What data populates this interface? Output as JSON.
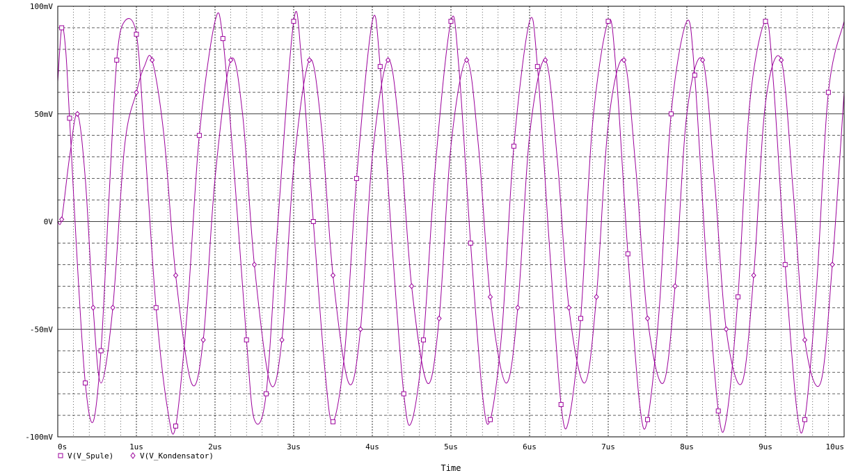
{
  "chart_data": {
    "type": "line",
    "xlabel": "Time",
    "ylabel": "",
    "xlim": [
      0,
      10
    ],
    "ylim": [
      -100,
      100
    ],
    "x_ticks": [
      0,
      1,
      2,
      3,
      4,
      5,
      6,
      7,
      8,
      9,
      10
    ],
    "x_tick_labels": [
      "0s",
      "1us",
      "2us",
      "3us",
      "4us",
      "5us",
      "6us",
      "7us",
      "8us",
      "9us",
      "10us"
    ],
    "y_ticks": [
      -100,
      -50,
      0,
      50,
      100
    ],
    "y_tick_labels": [
      "-100mV",
      "-50mV",
      "0V",
      "50mV",
      "100mV"
    ],
    "x_unit": "us",
    "y_unit": "mV",
    "grid": true,
    "legend_position": "bottom-left",
    "line_color": "#9b009b",
    "series": [
      {
        "name": "V(V_Spule)",
        "marker": "square",
        "x": [
          0,
          0.05,
          0.1,
          0.15,
          0.25,
          0.35,
          0.45,
          0.55,
          0.65,
          0.75,
          0.85,
          1.0,
          1.1,
          1.25,
          1.4,
          1.5,
          1.65,
          1.8,
          2.0,
          2.1,
          2.25,
          2.4,
          2.5,
          2.65,
          2.8,
          3.0,
          3.1,
          3.25,
          3.4,
          3.5,
          3.65,
          3.8,
          4.0,
          4.1,
          4.25,
          4.4,
          4.5,
          4.65,
          4.8,
          5.0,
          5.1,
          5.25,
          5.4,
          5.5,
          5.65,
          5.8,
          6.0,
          6.1,
          6.25,
          6.4,
          6.5,
          6.65,
          6.8,
          7.0,
          7.1,
          7.25,
          7.4,
          7.5,
          7.65,
          7.8,
          8.0,
          8.1,
          8.25,
          8.4,
          8.5,
          8.65,
          8.8,
          9.0,
          9.1,
          9.25,
          9.4,
          9.5,
          9.65,
          9.8,
          10.0
        ],
        "values": [
          65,
          90,
          80,
          48,
          -20,
          -75,
          -93,
          -60,
          10,
          75,
          93,
          87,
          40,
          -40,
          -88,
          -95,
          -40,
          40,
          93,
          85,
          20,
          -55,
          -92,
          -80,
          0,
          93,
          75,
          0,
          -70,
          -93,
          -60,
          20,
          93,
          72,
          -10,
          -80,
          -93,
          -55,
          25,
          93,
          72,
          -10,
          -80,
          -92,
          -50,
          35,
          93,
          72,
          -10,
          -85,
          -92,
          -45,
          45,
          93,
          70,
          -15,
          -85,
          -92,
          -40,
          50,
          93,
          68,
          -20,
          -88,
          -92,
          -35,
          55,
          93,
          65,
          -20,
          -88,
          -92,
          -30,
          60,
          93
        ]
      },
      {
        "name": "V(V_Kondensator)",
        "marker": "diamond",
        "x": [
          0,
          0.05,
          0.15,
          0.25,
          0.35,
          0.45,
          0.55,
          0.7,
          0.85,
          1.0,
          1.1,
          1.2,
          1.35,
          1.5,
          1.7,
          1.85,
          2.0,
          2.2,
          2.35,
          2.5,
          2.7,
          2.85,
          3.0,
          3.2,
          3.35,
          3.5,
          3.7,
          3.85,
          4.0,
          4.2,
          4.35,
          4.5,
          4.7,
          4.85,
          5.0,
          5.2,
          5.35,
          5.5,
          5.7,
          5.85,
          6.0,
          6.2,
          6.35,
          6.5,
          6.7,
          6.85,
          7.0,
          7.2,
          7.35,
          7.5,
          7.7,
          7.85,
          8.0,
          8.2,
          8.35,
          8.5,
          8.7,
          8.85,
          9.0,
          9.2,
          9.35,
          9.5,
          9.7,
          9.85,
          10.0
        ],
        "values": [
          0,
          1,
          30,
          50,
          20,
          -40,
          -75,
          -40,
          35,
          60,
          72,
          75,
          40,
          -25,
          -75,
          -55,
          20,
          75,
          50,
          -20,
          -75,
          -55,
          25,
          75,
          45,
          -25,
          -75,
          -50,
          30,
          75,
          40,
          -30,
          -75,
          -45,
          35,
          75,
          35,
          -35,
          -75,
          -40,
          40,
          75,
          30,
          -40,
          -75,
          -35,
          45,
          75,
          25,
          -45,
          -75,
          -30,
          50,
          75,
          20,
          -50,
          -75,
          -25,
          55,
          75,
          15,
          -55,
          -75,
          -20,
          60
        ]
      }
    ]
  }
}
